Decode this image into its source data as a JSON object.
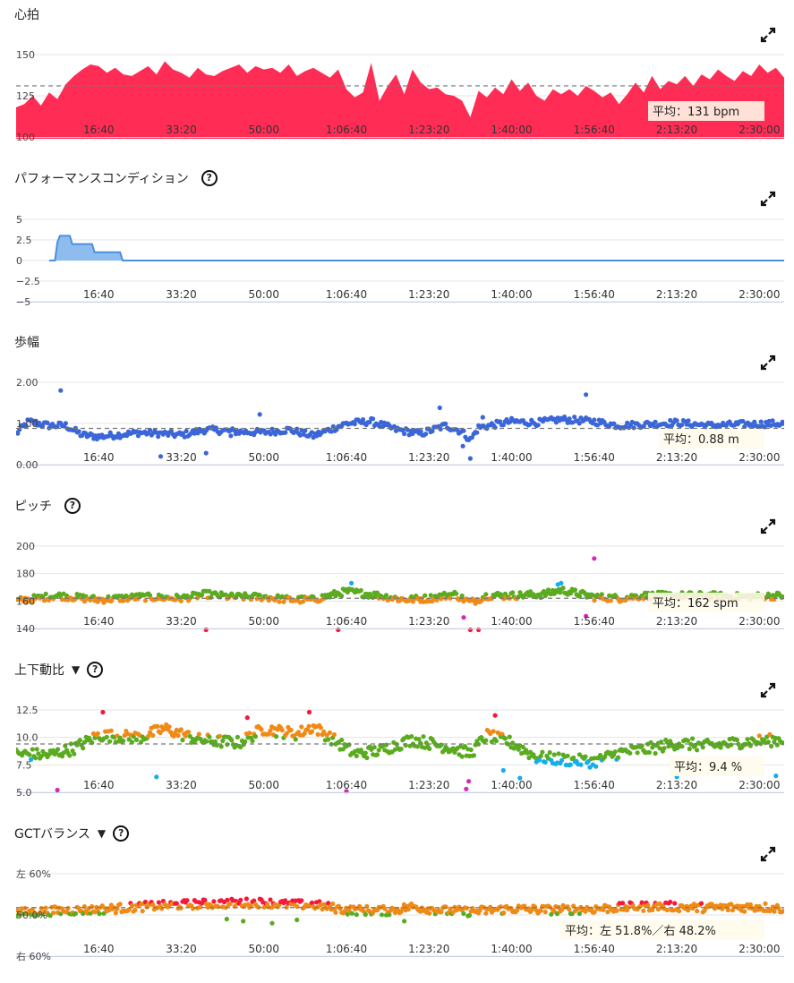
{
  "icons": {
    "expand": "expand-icon",
    "help": "help-circle-icon",
    "dropdown": "triangle-down-icon"
  },
  "colors": {
    "heart": "#ff2d55",
    "perf_fill": "#8ebcee",
    "perf_line": "#4a90e2",
    "stride": "#3a66d8",
    "green": "#5aab1f",
    "orange": "#ef8a16",
    "red": "#f5183c",
    "magenta": "#d62ab6",
    "cyan": "#14aeea",
    "grid": "#e6e6e6"
  },
  "x_ticks": [
    "16:40",
    "33:20",
    "50:00",
    "1:06:40",
    "1:23:20",
    "1:40:00",
    "1:56:40",
    "2:13:20",
    "2:30:00"
  ],
  "chart_data": [
    {
      "id": "heart_rate",
      "type": "area",
      "title": "心拍",
      "help": false,
      "dropdown": false,
      "xlabel": "",
      "ylabel": "",
      "xlim": [
        0,
        9300
      ],
      "ylim": [
        100,
        150
      ],
      "x_tick_values": [
        1000,
        2000,
        3000,
        4000,
        5000,
        6000,
        7000,
        8000,
        9000
      ],
      "y_ticks": [
        {
          "v": 150,
          "label": "150"
        },
        {
          "v": 125,
          "label": "125"
        },
        {
          "v": 100,
          "label": "100"
        }
      ],
      "average": {
        "value": 131,
        "label": "平均：131 bpm"
      },
      "points": [
        [
          0,
          118
        ],
        [
          100,
          120
        ],
        [
          200,
          125
        ],
        [
          300,
          119
        ],
        [
          400,
          127
        ],
        [
          500,
          123
        ],
        [
          600,
          132
        ],
        [
          700,
          137
        ],
        [
          800,
          141
        ],
        [
          900,
          144
        ],
        [
          1000,
          143
        ],
        [
          1100,
          139
        ],
        [
          1200,
          142
        ],
        [
          1300,
          138
        ],
        [
          1400,
          137
        ],
        [
          1500,
          140
        ],
        [
          1600,
          143
        ],
        [
          1700,
          138
        ],
        [
          1800,
          146
        ],
        [
          1900,
          141
        ],
        [
          2000,
          139
        ],
        [
          2100,
          136
        ],
        [
          2200,
          142
        ],
        [
          2300,
          138
        ],
        [
          2400,
          137
        ],
        [
          2500,
          140
        ],
        [
          2600,
          142
        ],
        [
          2700,
          144
        ],
        [
          2800,
          139
        ],
        [
          2900,
          143
        ],
        [
          3000,
          141
        ],
        [
          3100,
          142
        ],
        [
          3200,
          139
        ],
        [
          3300,
          144
        ],
        [
          3400,
          137
        ],
        [
          3500,
          140
        ],
        [
          3600,
          142
        ],
        [
          3700,
          139
        ],
        [
          3800,
          136
        ],
        [
          3900,
          141
        ],
        [
          4000,
          129
        ],
        [
          4100,
          124
        ],
        [
          4200,
          127
        ],
        [
          4300,
          145
        ],
        [
          4400,
          122
        ],
        [
          4500,
          131
        ],
        [
          4600,
          138
        ],
        [
          4700,
          126
        ],
        [
          4800,
          141
        ],
        [
          4900,
          133
        ],
        [
          5000,
          129
        ],
        [
          5100,
          130
        ],
        [
          5200,
          126
        ],
        [
          5300,
          125
        ],
        [
          5400,
          122
        ],
        [
          5500,
          112
        ],
        [
          5600,
          128
        ],
        [
          5700,
          124
        ],
        [
          5800,
          130
        ],
        [
          5900,
          126
        ],
        [
          6000,
          135
        ],
        [
          6100,
          128
        ],
        [
          6200,
          133
        ],
        [
          6300,
          125
        ],
        [
          6400,
          122
        ],
        [
          6500,
          129
        ],
        [
          6600,
          126
        ],
        [
          6700,
          129
        ],
        [
          6800,
          125
        ],
        [
          6900,
          131
        ],
        [
          7000,
          128
        ],
        [
          7100,
          124
        ],
        [
          7200,
          127
        ],
        [
          7300,
          120
        ],
        [
          7400,
          126
        ],
        [
          7500,
          133
        ],
        [
          7600,
          127
        ],
        [
          7700,
          137
        ],
        [
          7800,
          129
        ],
        [
          7900,
          134
        ],
        [
          8000,
          132
        ],
        [
          8100,
          137
        ],
        [
          8200,
          131
        ],
        [
          8300,
          138
        ],
        [
          8400,
          135
        ],
        [
          8500,
          141
        ],
        [
          8600,
          137
        ],
        [
          8700,
          134
        ],
        [
          8800,
          140
        ],
        [
          8900,
          137
        ],
        [
          9000,
          144
        ],
        [
          9100,
          139
        ],
        [
          9200,
          142
        ],
        [
          9300,
          136
        ]
      ]
    },
    {
      "id": "performance_condition",
      "type": "area",
      "title": "パフォーマンスコンディション",
      "help": true,
      "dropdown": false,
      "xlabel": "",
      "ylabel": "",
      "xlim": [
        0,
        9300
      ],
      "ylim": [
        -5,
        5
      ],
      "x_tick_values": [
        1000,
        2000,
        3000,
        4000,
        5000,
        6000,
        7000,
        8000,
        9000
      ],
      "y_ticks": [
        {
          "v": 5,
          "label": "5"
        },
        {
          "v": 2.5,
          "label": "2.5"
        },
        {
          "v": 0,
          "label": "0"
        },
        {
          "v": -2.5,
          "label": "−2.5"
        },
        {
          "v": -5,
          "label": "−5"
        }
      ],
      "points": [
        [
          400,
          0
        ],
        [
          470,
          0
        ],
        [
          500,
          2.2
        ],
        [
          530,
          3
        ],
        [
          650,
          3
        ],
        [
          680,
          2
        ],
        [
          920,
          2
        ],
        [
          950,
          1
        ],
        [
          1260,
          1
        ],
        [
          1290,
          0
        ],
        [
          9300,
          0
        ]
      ]
    },
    {
      "id": "stride_length",
      "type": "scatter",
      "title": "歩幅",
      "help": false,
      "dropdown": false,
      "xlabel": "",
      "ylabel": "",
      "xlim": [
        0,
        9300
      ],
      "ylim": [
        0,
        2
      ],
      "x_tick_values": [
        1000,
        2000,
        3000,
        4000,
        5000,
        6000,
        7000,
        8000,
        9000
      ],
      "y_ticks": [
        {
          "v": 2,
          "label": "2.00"
        },
        {
          "v": 1,
          "label": "1.00"
        },
        {
          "v": 0,
          "label": "0.00"
        }
      ],
      "average": {
        "value": 0.88,
        "label": "平均：0.88 m"
      },
      "profile": [
        [
          0,
          0.75
        ],
        [
          150,
          1.05
        ],
        [
          400,
          0.95
        ],
        [
          600,
          0.95
        ],
        [
          800,
          0.72
        ],
        [
          1000,
          0.68
        ],
        [
          1500,
          0.78
        ],
        [
          1800,
          0.75
        ],
        [
          2000,
          0.72
        ],
        [
          2300,
          0.85
        ],
        [
          2700,
          0.8
        ],
        [
          3000,
          0.78
        ],
        [
          3300,
          0.85
        ],
        [
          3600,
          0.7
        ],
        [
          4000,
          1.0
        ],
        [
          4300,
          1.05
        ],
        [
          4600,
          0.85
        ],
        [
          4900,
          0.75
        ],
        [
          5200,
          0.95
        ],
        [
          5400,
          0.8
        ],
        [
          5500,
          0.6
        ],
        [
          5600,
          0.9
        ],
        [
          6000,
          1.05
        ],
        [
          6300,
          1.02
        ],
        [
          6600,
          1.1
        ],
        [
          7000,
          1.05
        ],
        [
          7300,
          0.95
        ],
        [
          7600,
          0.98
        ],
        [
          8000,
          1.02
        ],
        [
          8400,
          0.95
        ],
        [
          8800,
          0.98
        ],
        [
          9300,
          1.0
        ]
      ],
      "jitter": 0.08,
      "outliers": [
        [
          540,
          1.8
        ],
        [
          1750,
          0.2
        ],
        [
          2300,
          0.28
        ],
        [
          2600,
          0.7
        ],
        [
          2950,
          1.22
        ],
        [
          5130,
          1.38
        ],
        [
          5410,
          0.45
        ],
        [
          5500,
          0.15
        ],
        [
          5650,
          1.15
        ],
        [
          6900,
          1.7
        ],
        [
          8000,
          0.6
        ]
      ]
    },
    {
      "id": "cadence",
      "type": "scatter",
      "title": "ピッチ",
      "help": true,
      "dropdown": false,
      "xlabel": "",
      "ylabel": "",
      "xlim": [
        0,
        9300
      ],
      "ylim": [
        140,
        200
      ],
      "x_tick_values": [
        1000,
        2000,
        3000,
        4000,
        5000,
        6000,
        7000,
        8000,
        9000
      ],
      "y_ticks": [
        {
          "v": 200,
          "label": "200"
        },
        {
          "v": 180,
          "label": "180"
        },
        {
          "v": 160,
          "label": "160"
        },
        {
          "v": 140,
          "label": "140"
        }
      ],
      "average": {
        "value": 162,
        "label": "平均：162 spm"
      },
      "color_rule": "cadence",
      "profile": [
        [
          0,
          160
        ],
        [
          500,
          164
        ],
        [
          1000,
          161
        ],
        [
          1500,
          163
        ],
        [
          2000,
          162
        ],
        [
          2300,
          165
        ],
        [
          2600,
          163
        ],
        [
          3000,
          163
        ],
        [
          3300,
          161
        ],
        [
          3600,
          161
        ],
        [
          4000,
          167
        ],
        [
          4400,
          164
        ],
        [
          4700,
          161
        ],
        [
          5000,
          162
        ],
        [
          5300,
          165
        ],
        [
          5500,
          159
        ],
        [
          5700,
          164
        ],
        [
          6000,
          164
        ],
        [
          6400,
          165
        ],
        [
          6600,
          168
        ],
        [
          7000,
          163
        ],
        [
          7300,
          162
        ],
        [
          7600,
          164
        ],
        [
          8000,
          164
        ],
        [
          8400,
          164
        ],
        [
          8800,
          163
        ],
        [
          9300,
          164
        ]
      ],
      "jitter": 2.6,
      "outliers": [
        [
          2300,
          139
        ],
        [
          3900,
          139
        ],
        [
          5420,
          148
        ],
        [
          5500,
          139
        ],
        [
          5600,
          139
        ],
        [
          6560,
          172
        ],
        [
          6600,
          173
        ],
        [
          6900,
          149
        ],
        [
          7000,
          191
        ],
        [
          4060,
          173
        ]
      ]
    },
    {
      "id": "vertical_ratio",
      "type": "scatter",
      "title": "上下動比",
      "help": true,
      "dropdown": true,
      "xlabel": "",
      "ylabel": "",
      "xlim": [
        0,
        9300
      ],
      "ylim": [
        5,
        12.5
      ],
      "x_tick_values": [
        1000,
        2000,
        3000,
        4000,
        5000,
        6000,
        7000,
        8000,
        9000
      ],
      "y_ticks": [
        {
          "v": 12.5,
          "label": "12.5"
        },
        {
          "v": 10,
          "label": "10.0"
        },
        {
          "v": 7.5,
          "label": "7.5"
        },
        {
          "v": 5,
          "label": "5.0"
        }
      ],
      "average": {
        "value": 9.4,
        "label": "平均：9.4 %"
      },
      "color_rule": "vratio",
      "profile": [
        [
          0,
          8.5
        ],
        [
          400,
          8.4
        ],
        [
          700,
          9
        ],
        [
          1000,
          10.2
        ],
        [
          1500,
          10
        ],
        [
          1800,
          10.8
        ],
        [
          2200,
          9.8
        ],
        [
          2700,
          9.5
        ],
        [
          3000,
          10.8
        ],
        [
          3400,
          10.3
        ],
        [
          3600,
          11
        ],
        [
          3900,
          9.5
        ],
        [
          4100,
          8.5
        ],
        [
          4400,
          8.8
        ],
        [
          4800,
          9.8
        ],
        [
          5300,
          9
        ],
        [
          5500,
          8.5
        ],
        [
          5700,
          10.2
        ],
        [
          6000,
          9.5
        ],
        [
          6300,
          8.2
        ],
        [
          6600,
          8
        ],
        [
          7000,
          7.8
        ],
        [
          7300,
          8.6
        ],
        [
          7700,
          9
        ],
        [
          8000,
          9.5
        ],
        [
          8400,
          9.2
        ],
        [
          8800,
          9.6
        ],
        [
          9300,
          9.8
        ]
      ],
      "jitter": 0.55,
      "outliers": [
        [
          1050,
          12.3
        ],
        [
          2800,
          11.8
        ],
        [
          3550,
          12.3
        ],
        [
          5450,
          5.3
        ],
        [
          5480,
          6
        ],
        [
          5800,
          12
        ],
        [
          6100,
          6.3
        ],
        [
          5900,
          7
        ],
        [
          1700,
          6.4
        ],
        [
          8000,
          6.4
        ],
        [
          9200,
          6.5
        ],
        [
          4000,
          5.1
        ],
        [
          500,
          5.2
        ]
      ]
    },
    {
      "id": "gct_balance",
      "type": "scatter",
      "title": "GCTバランス",
      "help": true,
      "dropdown": true,
      "xlabel": "",
      "ylabel": "",
      "xlim": [
        0,
        9300
      ],
      "ylim": [
        40,
        60
      ],
      "x_tick_values": [
        1000,
        2000,
        3000,
        4000,
        5000,
        6000,
        7000,
        8000,
        9000
      ],
      "y_ticks": [
        {
          "v": 60,
          "label": "左 60%"
        },
        {
          "v": 50,
          "label": "50.0%"
        },
        {
          "v": 40,
          "label": "右 60%"
        }
      ],
      "average": {
        "value": 51.8,
        "label": "平均：左 51.8%／右 48.2%"
      },
      "color_rule": "gct",
      "profile": [
        [
          0,
          50.5
        ],
        [
          500,
          51
        ],
        [
          1000,
          51.3
        ],
        [
          1500,
          52
        ],
        [
          2000,
          52.5
        ],
        [
          2500,
          52.8
        ],
        [
          3000,
          53
        ],
        [
          3300,
          52.5
        ],
        [
          3600,
          52.5
        ],
        [
          4000,
          51.2
        ],
        [
          4500,
          51
        ],
        [
          4800,
          52
        ],
        [
          5200,
          51
        ],
        [
          5500,
          50.8
        ],
        [
          6000,
          51.5
        ],
        [
          6500,
          51.2
        ],
        [
          7000,
          51.5
        ],
        [
          7500,
          52
        ],
        [
          7800,
          52.2
        ],
        [
          8200,
          51.8
        ],
        [
          8600,
          51.8
        ],
        [
          9000,
          52
        ],
        [
          9300,
          51.5
        ]
      ],
      "jitter": 1.1,
      "outliers": [
        [
          2550,
          49
        ],
        [
          2750,
          48.5
        ],
        [
          3100,
          48
        ],
        [
          3400,
          48.8
        ],
        [
          4700,
          48.5
        ]
      ]
    }
  ]
}
